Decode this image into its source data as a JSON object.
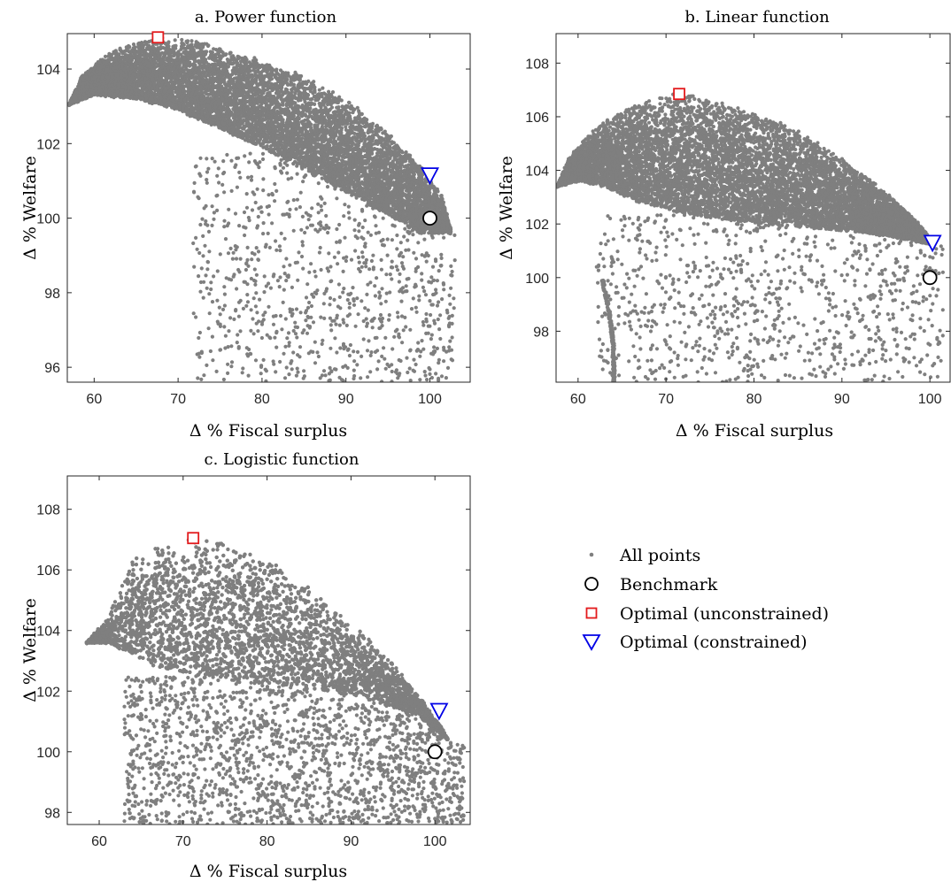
{
  "colors": {
    "points": "#7f7f7f",
    "benchmark": "#000000",
    "unconstrained": "#e31a1c",
    "constrained": "#0000e6",
    "axes": "#262626"
  },
  "legend": {
    "placement": "right-middle",
    "items": [
      {
        "label": "All points",
        "marker": "dot"
      },
      {
        "label": "Benchmark",
        "marker": "circle"
      },
      {
        "label": "Optimal (unconstrained)",
        "marker": "square"
      },
      {
        "label": "Optimal (constrained)",
        "marker": "triangle-down"
      }
    ]
  },
  "chart_data": [
    {
      "type": "scatter",
      "title": "a. Power function",
      "xlabel": "Δ % Fiscal surplus",
      "ylabel": "Δ % Welfare",
      "xlim": [
        56.8,
        104.8
      ],
      "ylim": [
        95.6,
        104.95
      ],
      "xticks": [
        60,
        70,
        80,
        90,
        100
      ],
      "yticks": [
        96,
        98,
        100,
        102,
        104
      ],
      "grid": false,
      "cloud": {
        "description_points": "approximate frontier of the point cloud",
        "upper_frontier": [
          [
            57,
            103.05
          ],
          [
            58.5,
            103.8
          ],
          [
            61,
            104.3
          ],
          [
            64,
            104.65
          ],
          [
            67.5,
            104.85
          ],
          [
            72,
            104.75
          ],
          [
            78,
            104.4
          ],
          [
            84,
            103.9
          ],
          [
            90,
            103.2
          ],
          [
            95,
            102.3
          ],
          [
            99,
            101.4
          ],
          [
            101.5,
            100.6
          ],
          [
            102.5,
            99.7
          ]
        ],
        "band_lower": [
          [
            57,
            103.05
          ],
          [
            60,
            103.3
          ],
          [
            65,
            103.2
          ],
          [
            70,
            102.9
          ],
          [
            75,
            102.4
          ],
          [
            80,
            101.9
          ],
          [
            85,
            101.3
          ],
          [
            90,
            100.7
          ],
          [
            95,
            100.1
          ],
          [
            99,
            99.6
          ],
          [
            102,
            99.6
          ]
        ],
        "sparse_region": {
          "x": [
            71.8,
            103
          ],
          "y": [
            95.6,
            101.8
          ]
        }
      },
      "benchmark": {
        "x": 100,
        "y": 100
      },
      "optimal_unconstrained": {
        "x": 67.6,
        "y": 104.85
      },
      "optimal_constrained": {
        "x": 100,
        "y": 101.15
      }
    },
    {
      "type": "scatter",
      "title": "b. Linear function",
      "xlabel": "Δ % Fiscal surplus",
      "ylabel": "Δ % Welfare",
      "xlim": [
        57.5,
        102.3
      ],
      "ylim": [
        96.1,
        109.1
      ],
      "xticks": [
        60,
        70,
        80,
        90,
        100
      ],
      "yticks": [
        98,
        100,
        102,
        104,
        106,
        108
      ],
      "grid": false,
      "cloud": {
        "upper_frontier": [
          [
            57.6,
            103.4
          ],
          [
            59,
            104.5
          ],
          [
            62,
            105.6
          ],
          [
            66,
            106.4
          ],
          [
            71,
            106.9
          ],
          [
            76,
            106.6
          ],
          [
            81,
            106.1
          ],
          [
            86,
            105.3
          ],
          [
            91,
            104.2
          ],
          [
            95,
            103.2
          ],
          [
            98.5,
            102.1
          ],
          [
            100.5,
            101.3
          ]
        ],
        "band_lower": [
          [
            57.6,
            103.4
          ],
          [
            60,
            103.6
          ],
          [
            63,
            103.4
          ],
          [
            67,
            102.8
          ],
          [
            72,
            102.4
          ],
          [
            78,
            102.1
          ],
          [
            85,
            101.9
          ],
          [
            92,
            101.7
          ],
          [
            98,
            101.4
          ],
          [
            100.5,
            101.2
          ]
        ],
        "sparse_region": {
          "x": [
            62,
            101.5
          ],
          "y": [
            96.1,
            102.4
          ]
        },
        "vertical_strand": [
          [
            62.8,
            99.9
          ],
          [
            63.5,
            98.8
          ],
          [
            64,
            97.5
          ],
          [
            64.1,
            96.1
          ]
        ]
      },
      "benchmark": {
        "x": 100,
        "y": 100
      },
      "optimal_unconstrained": {
        "x": 71.5,
        "y": 106.85
      },
      "optimal_constrained": {
        "x": 100.3,
        "y": 101.3
      }
    },
    {
      "type": "scatter",
      "title": "c. Logistic function",
      "xlabel": "Δ % Fiscal surplus",
      "ylabel": "Δ % Welfare",
      "xlim": [
        56.2,
        104.2
      ],
      "ylim": [
        97.6,
        109.1
      ],
      "xticks": [
        60,
        70,
        80,
        90,
        100
      ],
      "yticks": [
        98,
        100,
        102,
        104,
        106,
        108
      ],
      "grid": false,
      "cloud": {
        "upper_frontier": [
          [
            58.5,
            103.6
          ],
          [
            61,
            104.4
          ],
          [
            64,
            106.3
          ],
          [
            67,
            106.8
          ],
          [
            71,
            107.05
          ],
          [
            76,
            106.8
          ],
          [
            81,
            106.2
          ],
          [
            86,
            105.2
          ],
          [
            91,
            104.0
          ],
          [
            95,
            102.9
          ],
          [
            98.5,
            101.7
          ],
          [
            101,
            100.7
          ],
          [
            103,
            99.6
          ]
        ],
        "band_lower": [
          [
            58.5,
            103.6
          ],
          [
            61,
            103.6
          ],
          [
            64,
            103.2
          ],
          [
            67,
            102.8
          ],
          [
            72,
            102.5
          ],
          [
            78,
            102.3
          ],
          [
            85,
            102.1
          ],
          [
            92,
            101.8
          ],
          [
            98,
            101.2
          ],
          [
            102,
            100.3
          ]
        ],
        "sparse_region": {
          "x": [
            63,
            103.5
          ],
          "y": [
            97.6,
            102.5
          ]
        }
      },
      "benchmark": {
        "x": 100,
        "y": 100
      },
      "optimal_unconstrained": {
        "x": 71.2,
        "y": 107.05
      },
      "optimal_constrained": {
        "x": 100.5,
        "y": 101.35
      }
    }
  ]
}
